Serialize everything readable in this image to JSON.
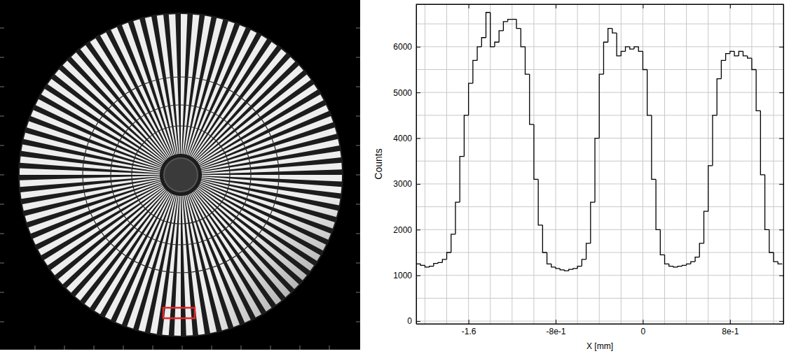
{
  "chart_data": {
    "type": "histogram",
    "line_style": "step",
    "color": "#000000",
    "grid": true,
    "x_label": "X [mm]",
    "y_label": "Counts",
    "xlim": [
      -2.08,
      1.29
    ],
    "ylim": [
      -60,
      6930
    ],
    "xticks": [
      -1.6,
      {
        "value": -0.8,
        "label": "-8e-1"
      },
      0,
      {
        "value": 0.8,
        "label": "8e-1"
      }
    ],
    "yticks": [
      0,
      1000,
      2000,
      3000,
      4000,
      5000,
      6000
    ],
    "bins": [
      -2.08,
      -2.04,
      -2.0,
      -1.96,
      -1.92,
      -1.88,
      -1.84,
      -1.8,
      -1.76,
      -1.72,
      -1.68,
      -1.64,
      -1.6,
      -1.56,
      -1.52,
      -1.48,
      -1.44,
      -1.4,
      -1.36,
      -1.32,
      -1.28,
      -1.24,
      -1.2,
      -1.16,
      -1.12,
      -1.08,
      -1.04,
      -1.0,
      -0.96,
      -0.92,
      -0.88,
      -0.84,
      -0.8,
      -0.76,
      -0.72,
      -0.68,
      -0.64,
      -0.6,
      -0.56,
      -0.52,
      -0.48,
      -0.44,
      -0.4,
      -0.36,
      -0.32,
      -0.28,
      -0.24,
      -0.2,
      -0.16,
      -0.12,
      -0.08,
      -0.04,
      0.0,
      0.04,
      0.08,
      0.12,
      0.16,
      0.2,
      0.24,
      0.28,
      0.32,
      0.36,
      0.4,
      0.44,
      0.48,
      0.52,
      0.56,
      0.6,
      0.64,
      0.68,
      0.72,
      0.76,
      0.8,
      0.84,
      0.88,
      0.92,
      0.96,
      1.0,
      1.04,
      1.08,
      1.12,
      1.16,
      1.2,
      1.24,
      1.28
    ],
    "values": [
      1250,
      1220,
      1180,
      1200,
      1260,
      1280,
      1350,
      1500,
      1900,
      2600,
      3600,
      4500,
      5200,
      5700,
      6000,
      6200,
      6750,
      6000,
      6100,
      6350,
      6550,
      6600,
      6600,
      6400,
      6000,
      5400,
      4300,
      3100,
      2100,
      1500,
      1250,
      1180,
      1150,
      1120,
      1100,
      1130,
      1150,
      1200,
      1350,
      1700,
      2600,
      4000,
      5400,
      6100,
      6400,
      6300,
      5800,
      5900,
      6000,
      5950,
      6000,
      5900,
      5500,
      4500,
      3100,
      2000,
      1450,
      1250,
      1200,
      1180,
      1200,
      1220,
      1250,
      1300,
      1400,
      1700,
      2400,
      3400,
      4500,
      5300,
      5700,
      5850,
      5900,
      5800,
      5900,
      5800,
      5750,
      5500,
      4600,
      3200,
      2000,
      1500,
      1300,
      1250
    ]
  }
}
